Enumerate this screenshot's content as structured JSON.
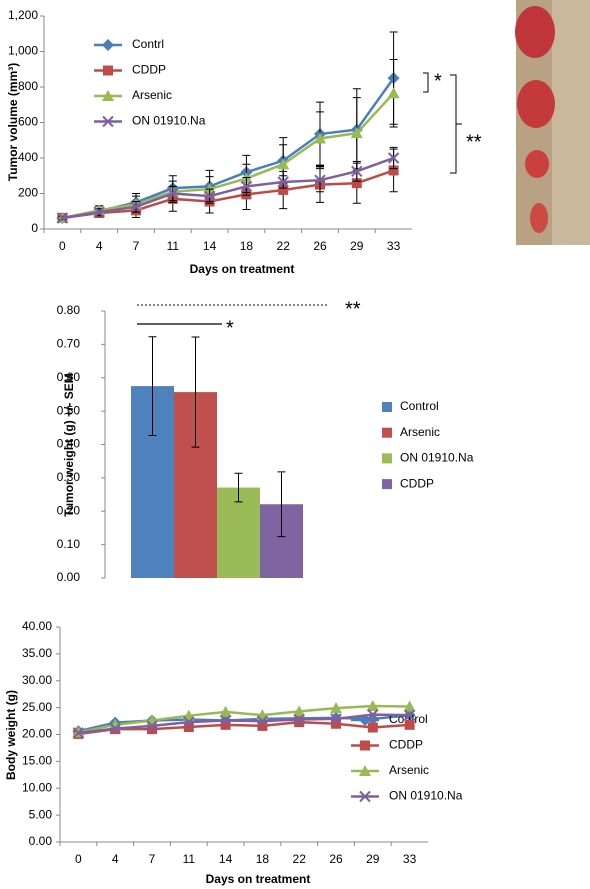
{
  "chart_data": [
    {
      "type": "line",
      "x_label": "Days on treatment",
      "y_label": "Tumor volume (mm³)",
      "categories": [
        "0",
        "4",
        "7",
        "11",
        "14",
        "18",
        "22",
        "26",
        "29",
        "33"
      ],
      "ylim": [
        0,
        1200
      ],
      "yticks": [
        0,
        200,
        400,
        600,
        800,
        {
          "value": 1000,
          "label": "1,000"
        },
        {
          "value": 1200,
          "label": "1,200"
        }
      ],
      "annotations": [
        "*",
        "**"
      ],
      "series": [
        {
          "name": "Contrl",
          "color": "#4a7ebb",
          "marker": "diamond",
          "values": [
            62,
            100,
            150,
            230,
            240,
            320,
            385,
            535,
            560,
            850
          ],
          "errors": [
            10,
            30,
            50,
            70,
            90,
            95,
            130,
            180,
            230,
            260
          ]
        },
        {
          "name": "CDDP",
          "color": "#be4b48",
          "marker": "square",
          "values": [
            62,
            90,
            105,
            170,
            155,
            195,
            220,
            250,
            258,
            330
          ],
          "errors": [
            10,
            10,
            40,
            70,
            65,
            85,
            105,
            100,
            113,
            120
          ]
        },
        {
          "name": "Arsenic",
          "color": "#98b954",
          "marker": "triangle",
          "values": [
            62,
            105,
            140,
            210,
            225,
            285,
            365,
            510,
            540,
            765
          ],
          "errors": [
            10,
            25,
            45,
            60,
            70,
            80,
            110,
            150,
            200,
            190
          ]
        },
        {
          "name": "ON 01910.Na",
          "color": "#7d60a0",
          "marker": "x",
          "values": [
            62,
            95,
            125,
            200,
            185,
            240,
            265,
            275,
            325,
            400
          ],
          "errors": [
            10,
            20,
            30,
            40,
            40,
            50,
            35,
            65,
            55,
            60
          ]
        }
      ]
    },
    {
      "type": "bar",
      "y_label": "Tumor weight (g) +/- SEM",
      "categories": [
        null
      ],
      "ylim": [
        0,
        0.8
      ],
      "yticks": [
        {
          "value": 0,
          "label": "0.00"
        },
        {
          "value": 0.1,
          "label": "0.10"
        },
        {
          "value": 0.2,
          "label": "0.20"
        },
        {
          "value": 0.3,
          "label": "0.30"
        },
        {
          "value": 0.4,
          "label": "0.40"
        },
        {
          "value": 0.5,
          "label": "0.50"
        },
        {
          "value": 0.6,
          "label": "0.60"
        },
        {
          "value": 0.7,
          "label": "0.70"
        },
        {
          "value": 0.8,
          "label": "0.80"
        }
      ],
      "annotations": [
        "**",
        "*"
      ],
      "series": [
        {
          "name": "Control",
          "color": "#4f81bd",
          "values": [
            0.575
          ],
          "errors": [
            0.148
          ]
        },
        {
          "name": "Arsenic",
          "color": "#c0504d",
          "values": [
            0.557
          ],
          "errors": [
            0.165
          ]
        },
        {
          "name": "ON 01910.Na",
          "color": "#9bbb59",
          "values": [
            0.271
          ],
          "errors": [
            0.043
          ]
        },
        {
          "name": "CDDP",
          "color": "#8064a2",
          "values": [
            0.221
          ],
          "errors": [
            0.097
          ]
        }
      ]
    },
    {
      "type": "line",
      "x_label": "Days on treatment",
      "y_label": "Body weight (g)",
      "categories": [
        "0",
        "4",
        "7",
        "11",
        "14",
        "18",
        "22",
        "26",
        "29",
        "33"
      ],
      "ylim": [
        0,
        40
      ],
      "yticks": [
        {
          "value": 0,
          "label": "0.00"
        },
        {
          "value": 5,
          "label": "5.00"
        },
        {
          "value": 10,
          "label": "10.00"
        },
        {
          "value": 15,
          "label": "15.00"
        },
        {
          "value": 20,
          "label": "20.00"
        },
        {
          "value": 25,
          "label": "25.00"
        },
        {
          "value": 30,
          "label": "30.00"
        },
        {
          "value": 35,
          "label": "35.00"
        },
        {
          "value": 40,
          "label": "40.00"
        }
      ],
      "series": [
        {
          "name": "Control",
          "color": "#4a7ebb",
          "marker": "diamond",
          "values": [
            20.6,
            22.2,
            22.6,
            22.8,
            22.6,
            22.9,
            23.0,
            23.1,
            22.9,
            23.6
          ]
        },
        {
          "name": "CDDP",
          "color": "#be4b48",
          "marker": "square",
          "values": [
            20.1,
            21.0,
            21.0,
            21.4,
            21.8,
            21.6,
            22.3,
            22.0,
            21.3,
            21.8
          ]
        },
        {
          "name": "Arsenic",
          "color": "#98b954",
          "marker": "triangle",
          "values": [
            20.4,
            21.8,
            22.6,
            23.5,
            24.2,
            23.6,
            24.3,
            24.9,
            25.3,
            25.2
          ]
        },
        {
          "name": "ON 01910.Na",
          "color": "#7d60a0",
          "marker": "x",
          "values": [
            20.3,
            21.1,
            21.6,
            22.3,
            22.6,
            22.5,
            22.8,
            22.9,
            23.7,
            23.6
          ]
        }
      ]
    }
  ]
}
